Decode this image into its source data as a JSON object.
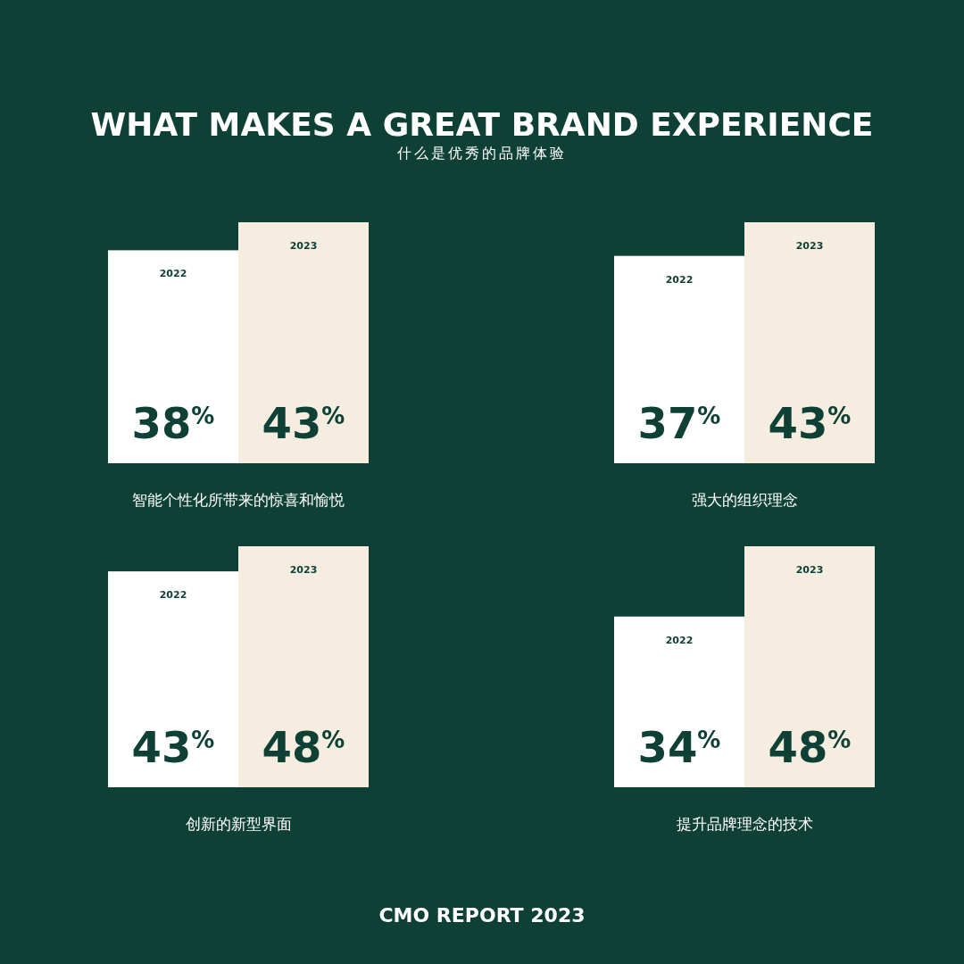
{
  "chart_data": [
    {
      "type": "other",
      "title": "WHAT MAKES A GREAT BRAND EXPERIENCE",
      "subtitle": "什么是优秀的品牌体验"
    },
    {
      "type": "bar",
      "categories": [
        "2022",
        "2023"
      ],
      "values": [
        38,
        43
      ],
      "value_labels": [
        "38$^{%}$",
        "43$^{%}$"
      ],
      "colors": [
        "#ffffff",
        "#f5ede0"
      ],
      "xlabel": "智能个性化所带来的惊喜和愉悦"
    },
    {
      "type": "bar",
      "categories": [
        "2022",
        "2023"
      ],
      "values": [
        37,
        43
      ],
      "value_labels": [
        "37$^{%}$",
        "43$^{%}$"
      ],
      "colors": [
        "#ffffff",
        "#f5ede0"
      ],
      "xlabel": "强大的组织理念"
    },
    {
      "type": "bar",
      "categories": [
        "2022",
        "2023"
      ],
      "values": [
        43,
        48
      ],
      "value_labels": [
        "43$^{%}$",
        "48$^{%}$"
      ],
      "colors": [
        "#ffffff",
        "#f5ede0"
      ],
      "xlabel": "创新的新型界面"
    },
    {
      "type": "bar",
      "categories": [
        "2022",
        "2023"
      ],
      "values": [
        34,
        48
      ],
      "value_labels": [
        "34$^{%}$",
        "48$^{%}$"
      ],
      "colors": [
        "#ffffff",
        "#f5ede0"
      ],
      "xlabel": "提升品牌理念的技术"
    },
    {
      "type": "other",
      "annotations": [
        "CMO REPORT 2023"
      ]
    }
  ]
}
